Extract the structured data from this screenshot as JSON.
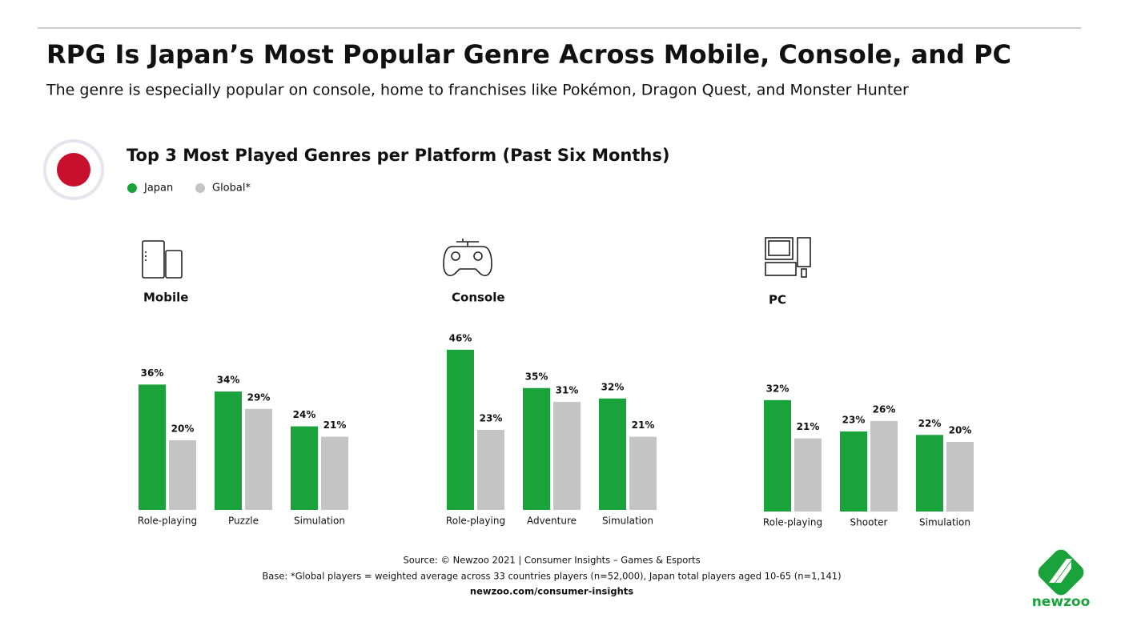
{
  "header": {
    "title": "RPG Is Japan’s Most Popular Genre Across Mobile, Console, and PC",
    "subtitle": "The genre is especially popular on console, home to franchises like Pokémon, Dragon Quest, and Monster Hunter",
    "section_title": "Top 3 Most Played Genres per Platform (Past Six Months)"
  },
  "chart_data": [
    {
      "type": "bar",
      "title": "Mobile",
      "categories": [
        "Role-playing",
        "Puzzle",
        "Simulation"
      ],
      "series": [
        {
          "name": "Japan",
          "color": "#1aa33a",
          "values": [
            36,
            34,
            24
          ],
          "value_labels": [
            "36%",
            "34%",
            "24%"
          ]
        },
        {
          "name": "Global*",
          "color": "#c4c4c4",
          "values": [
            20,
            29,
            21
          ],
          "value_labels": [
            "20%",
            "29%",
            "21%"
          ]
        }
      ]
    },
    {
      "type": "bar",
      "title": "Console",
      "categories": [
        "Role-playing",
        "Adventure",
        "Simulation"
      ],
      "series": [
        {
          "name": "Japan",
          "color": "#1aa33a",
          "values": [
            46,
            35,
            32
          ],
          "value_labels": [
            "46%",
            "35%",
            "32%"
          ]
        },
        {
          "name": "Global*",
          "color": "#c4c4c4",
          "values": [
            23,
            31,
            21
          ],
          "value_labels": [
            "23%",
            "31%",
            "21%"
          ]
        }
      ]
    },
    {
      "type": "bar",
      "title": "PC",
      "categories": [
        "Role-playing",
        "Shooter",
        "Simulation"
      ],
      "series": [
        {
          "name": "Japan",
          "color": "#1aa33a",
          "values": [
            32,
            23,
            22
          ],
          "value_labels": [
            "32%",
            "23%",
            "22%"
          ]
        },
        {
          "name": "Global*",
          "color": "#c4c4c4",
          "values": [
            21,
            26,
            20
          ],
          "value_labels": [
            "21%",
            "26%",
            "20%"
          ]
        }
      ]
    }
  ],
  "footer": {
    "source": "Source: © Newzoo 2021 | Consumer Insights – Games & Esports",
    "base": "Base: *Global players = weighted average across 33 countries players (n=52,000),  Japan total players aged 10-65 (n=1,141)",
    "url": "newzoo.com/consumer-insights"
  },
  "logo": "newzoo"
}
